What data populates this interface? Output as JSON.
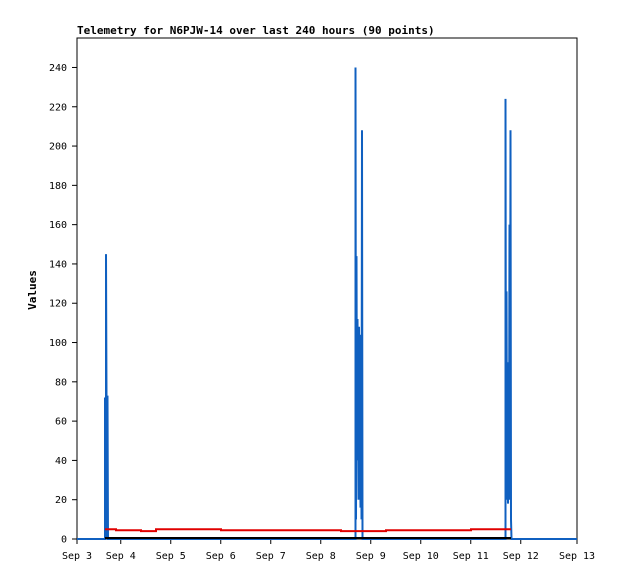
{
  "chart_data": {
    "type": "line",
    "title": "Telemetry for N6PJW-14 over last 240 hours (90 points)",
    "ylabel": "Values",
    "xlabel": "",
    "ylim": [
      0,
      255
    ],
    "yticks": [
      0,
      20,
      40,
      60,
      80,
      100,
      120,
      140,
      160,
      180,
      200,
      220,
      240
    ],
    "x_ticks": [
      {
        "label": "Sep 3",
        "t": 0
      },
      {
        "label": "Sep 4",
        "t": 0.875
      },
      {
        "label": "Sep 5",
        "t": 1.875
      },
      {
        "label": "Sep 6",
        "t": 2.875
      },
      {
        "label": "Sep 7",
        "t": 3.875
      },
      {
        "label": "Sep 8",
        "t": 4.875
      },
      {
        "label": "Sep 9",
        "t": 5.875
      },
      {
        "label": "Sep 10",
        "t": 6.875
      },
      {
        "label": "Sep 11",
        "t": 7.875
      },
      {
        "label": "Sep 12",
        "t": 8.875
      },
      {
        "label": "Sep 13",
        "t": 10
      }
    ],
    "xlim": [
      0,
      10
    ],
    "grid": false,
    "series": [
      {
        "color": "#1060c0",
        "points": [
          [
            0.0,
            0
          ],
          [
            0.56,
            0
          ],
          [
            0.56,
            72
          ],
          [
            0.58,
            0
          ],
          [
            0.58,
            145
          ],
          [
            0.6,
            0
          ],
          [
            0.61,
            73
          ],
          [
            0.62,
            0
          ],
          [
            5.57,
            0
          ],
          [
            5.57,
            240
          ],
          [
            5.58,
            10
          ],
          [
            5.59,
            144
          ],
          [
            5.6,
            40
          ],
          [
            5.61,
            112
          ],
          [
            5.62,
            80
          ],
          [
            5.63,
            20
          ],
          [
            5.64,
            108
          ],
          [
            5.65,
            48
          ],
          [
            5.66,
            64
          ],
          [
            5.67,
            16
          ],
          [
            5.68,
            104
          ],
          [
            5.69,
            10
          ],
          [
            5.7,
            208
          ],
          [
            5.71,
            0
          ],
          [
            8.57,
            0
          ],
          [
            8.57,
            224
          ],
          [
            8.58,
            20
          ],
          [
            8.59,
            126
          ],
          [
            8.6,
            30
          ],
          [
            8.61,
            90
          ],
          [
            8.62,
            18
          ],
          [
            8.63,
            54
          ],
          [
            8.64,
            20
          ],
          [
            8.65,
            160
          ],
          [
            8.66,
            30
          ],
          [
            8.67,
            208
          ],
          [
            8.68,
            10
          ],
          [
            8.69,
            0
          ],
          [
            10.0,
            0
          ]
        ]
      },
      {
        "color": "#e00000",
        "points": [
          [
            0.56,
            5
          ],
          [
            0.78,
            5
          ],
          [
            0.78,
            4.5
          ],
          [
            1.28,
            4.5
          ],
          [
            1.28,
            4
          ],
          [
            1.58,
            4
          ],
          [
            1.58,
            5
          ],
          [
            2.88,
            5
          ],
          [
            2.88,
            4.5
          ],
          [
            5.28,
            4.5
          ],
          [
            5.28,
            4
          ],
          [
            6.18,
            4
          ],
          [
            6.18,
            4.5
          ],
          [
            7.88,
            4.5
          ],
          [
            7.88,
            5
          ],
          [
            8.68,
            5
          ]
        ]
      },
      {
        "color": "#000000",
        "points": [
          [
            0.56,
            0.5
          ],
          [
            8.68,
            0.5
          ]
        ]
      }
    ]
  }
}
